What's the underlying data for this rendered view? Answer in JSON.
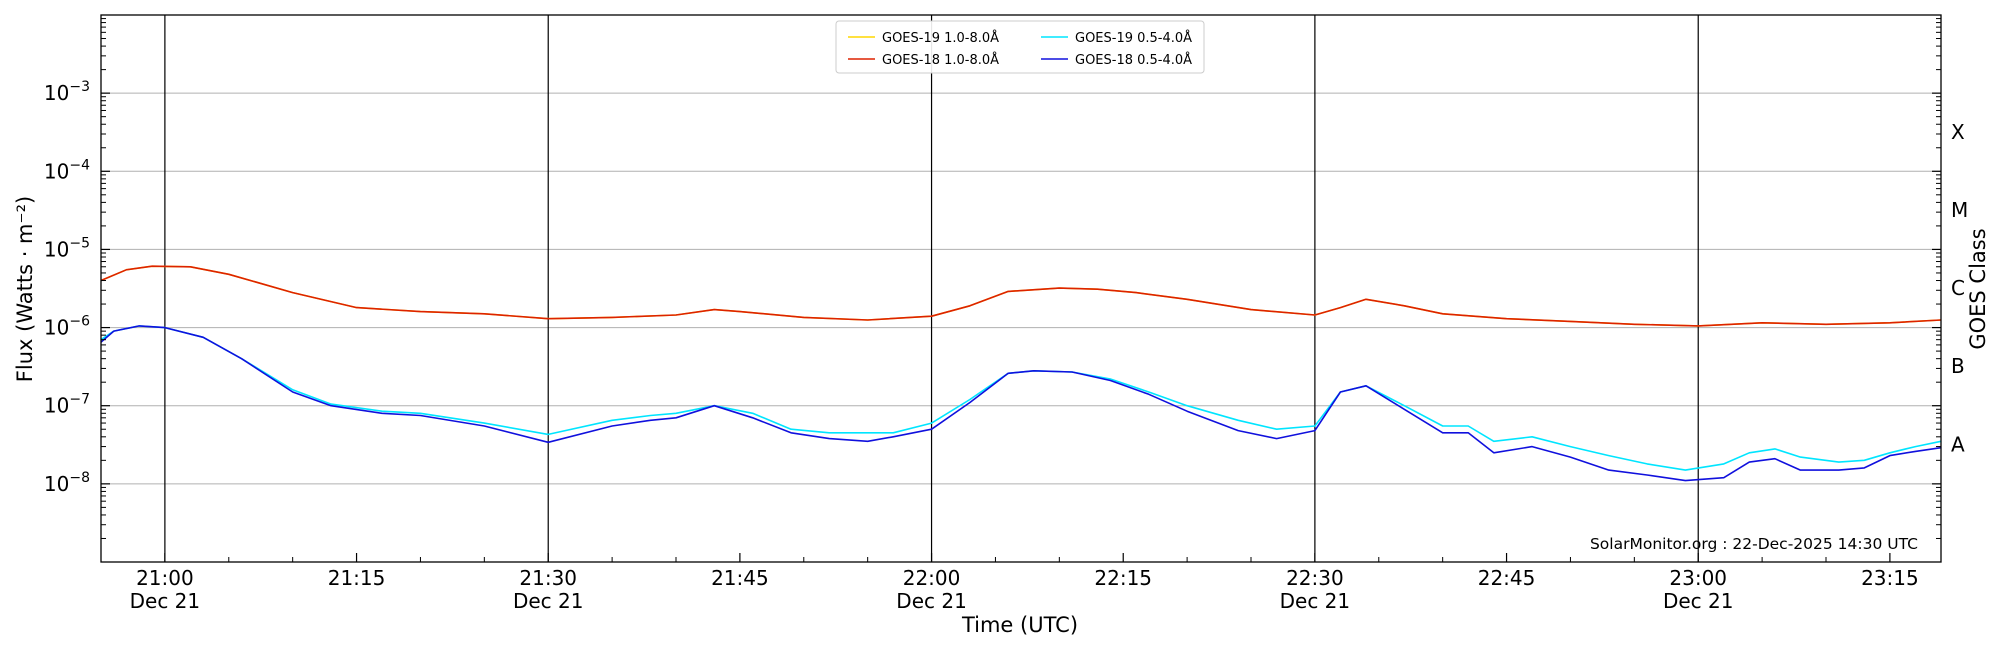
{
  "chart_data": {
    "type": "line",
    "title": "",
    "xlabel": "Time (UTC)",
    "ylabel": "Flux (Watts · m⁻²)",
    "y2label": "GOES Class",
    "y_scale": "log",
    "ylim": [
      1e-09,
      0.01
    ],
    "xlim": [
      "20:55",
      "23:19"
    ],
    "grid": "horizontal at decades",
    "legend_position": "top-center",
    "watermark": "SolarMonitor.org : 22-Dec-2025 14:30 UTC",
    "y_ticks": [
      {
        "value": 1e-08,
        "base": "10",
        "exp": "−8"
      },
      {
        "value": 1e-07,
        "base": "10",
        "exp": "−7"
      },
      {
        "value": 1e-06,
        "base": "10",
        "exp": "−6"
      },
      {
        "value": 1e-05,
        "base": "10",
        "exp": "−5"
      },
      {
        "value": 0.0001,
        "base": "10",
        "exp": "−4"
      },
      {
        "value": 0.001,
        "base": "10",
        "exp": "−3"
      }
    ],
    "class_labels": [
      {
        "label": "A",
        "value": 3.2e-08
      },
      {
        "label": "B",
        "value": 3.2e-07
      },
      {
        "label": "C",
        "value": 3.2e-06
      },
      {
        "label": "M",
        "value": 3.2e-05
      },
      {
        "label": "X",
        "value": 0.00032
      }
    ],
    "x_ticks": [
      {
        "time": "21:00",
        "date": "Dec 21"
      },
      {
        "time": "21:15",
        "date": ""
      },
      {
        "time": "21:30",
        "date": "Dec 21"
      },
      {
        "time": "21:45",
        "date": ""
      },
      {
        "time": "22:00",
        "date": "Dec 21"
      },
      {
        "time": "22:15",
        "date": ""
      },
      {
        "time": "22:30",
        "date": "Dec 21"
      },
      {
        "time": "22:45",
        "date": ""
      },
      {
        "time": "23:00",
        "date": "Dec 21"
      },
      {
        "time": "23:15",
        "date": ""
      }
    ],
    "vlines": [
      "21:00",
      "21:30",
      "22:00",
      "22:30",
      "23:00"
    ],
    "series": [
      {
        "name": "GOES-19 1.0-8.0Å",
        "color": "#ffd700",
        "x": [
          "20:55",
          "20:57",
          "20:59",
          "21:02",
          "21:05",
          "21:10",
          "21:15",
          "21:20",
          "21:25",
          "21:30",
          "21:35",
          "21:40",
          "21:43",
          "21:45",
          "21:50",
          "21:55",
          "22:00",
          "22:03",
          "22:06",
          "22:10",
          "22:13",
          "22:16",
          "22:20",
          "22:25",
          "22:30",
          "22:32",
          "22:34",
          "22:37",
          "22:40",
          "22:45",
          "22:50",
          "22:55",
          "23:00",
          "23:05",
          "23:10",
          "23:15",
          "23:19"
        ],
        "values": [
          4e-06,
          5.5e-06,
          6.1e-06,
          6e-06,
          4.8e-06,
          2.8e-06,
          1.8e-06,
          1.6e-06,
          1.5e-06,
          1.3e-06,
          1.35e-06,
          1.45e-06,
          1.7e-06,
          1.6e-06,
          1.35e-06,
          1.25e-06,
          1.4e-06,
          1.9e-06,
          2.9e-06,
          3.2e-06,
          3.1e-06,
          2.8e-06,
          2.3e-06,
          1.7e-06,
          1.45e-06,
          1.8e-06,
          2.3e-06,
          1.9e-06,
          1.5e-06,
          1.3e-06,
          1.2e-06,
          1.1e-06,
          1.05e-06,
          1.15e-06,
          1.1e-06,
          1.15e-06,
          1.25e-06
        ]
      },
      {
        "name": "GOES-18 1.0-8.0Å",
        "color": "#dd2200",
        "x": [
          "20:55",
          "20:57",
          "20:59",
          "21:02",
          "21:05",
          "21:10",
          "21:15",
          "21:20",
          "21:25",
          "21:30",
          "21:35",
          "21:40",
          "21:43",
          "21:45",
          "21:50",
          "21:55",
          "22:00",
          "22:03",
          "22:06",
          "22:10",
          "22:13",
          "22:16",
          "22:20",
          "22:25",
          "22:30",
          "22:32",
          "22:34",
          "22:37",
          "22:40",
          "22:45",
          "22:50",
          "22:55",
          "23:00",
          "23:05",
          "23:10",
          "23:15",
          "23:19"
        ],
        "values": [
          4e-06,
          5.5e-06,
          6.1e-06,
          6e-06,
          4.8e-06,
          2.8e-06,
          1.8e-06,
          1.6e-06,
          1.5e-06,
          1.3e-06,
          1.35e-06,
          1.45e-06,
          1.7e-06,
          1.6e-06,
          1.35e-06,
          1.25e-06,
          1.4e-06,
          1.9e-06,
          2.9e-06,
          3.2e-06,
          3.1e-06,
          2.8e-06,
          2.3e-06,
          1.7e-06,
          1.45e-06,
          1.8e-06,
          2.3e-06,
          1.9e-06,
          1.5e-06,
          1.3e-06,
          1.2e-06,
          1.1e-06,
          1.05e-06,
          1.15e-06,
          1.1e-06,
          1.15e-06,
          1.25e-06
        ]
      },
      {
        "name": "GOES-19 0.5-4.0Å",
        "color": "#00e5ff",
        "x": [
          "20:55",
          "20:56",
          "20:58",
          "21:00",
          "21:03",
          "21:06",
          "21:10",
          "21:13",
          "21:17",
          "21:20",
          "21:25",
          "21:30",
          "21:35",
          "21:38",
          "21:40",
          "21:43",
          "21:46",
          "21:49",
          "21:52",
          "21:55",
          "21:57",
          "22:00",
          "22:03",
          "22:06",
          "22:08",
          "22:11",
          "22:14",
          "22:17",
          "22:20",
          "22:24",
          "22:27",
          "22:30",
          "22:32",
          "22:34",
          "22:37",
          "22:40",
          "22:42",
          "22:44",
          "22:47",
          "22:50",
          "22:53",
          "22:56",
          "22:59",
          "23:02",
          "23:04",
          "23:06",
          "23:08",
          "23:11",
          "23:13",
          "23:15",
          "23:17",
          "23:19"
        ],
        "values": [
          7e-07,
          9e-07,
          1.05e-06,
          1e-06,
          7.5e-07,
          4e-07,
          1.6e-07,
          1.05e-07,
          8.5e-08,
          8e-08,
          6e-08,
          4.3e-08,
          6.5e-08,
          7.5e-08,
          8e-08,
          1e-07,
          8e-08,
          5e-08,
          4.5e-08,
          4.5e-08,
          4.5e-08,
          6e-08,
          1.2e-07,
          2.6e-07,
          2.8e-07,
          2.7e-07,
          2.2e-07,
          1.5e-07,
          1e-07,
          6.5e-08,
          5e-08,
          5.5e-08,
          1.5e-07,
          1.8e-07,
          1e-07,
          5.5e-08,
          5.5e-08,
          3.5e-08,
          4e-08,
          3e-08,
          2.3e-08,
          1.8e-08,
          1.5e-08,
          1.8e-08,
          2.5e-08,
          2.8e-08,
          2.2e-08,
          1.9e-08,
          2e-08,
          2.5e-08,
          3e-08,
          3.5e-08
        ]
      },
      {
        "name": "GOES-18 0.5-4.0Å",
        "color": "#1010dd",
        "x": [
          "20:55",
          "20:56",
          "20:58",
          "21:00",
          "21:03",
          "21:06",
          "21:10",
          "21:13",
          "21:17",
          "21:20",
          "21:25",
          "21:30",
          "21:35",
          "21:38",
          "21:40",
          "21:43",
          "21:46",
          "21:49",
          "21:52",
          "21:55",
          "21:57",
          "22:00",
          "22:03",
          "22:06",
          "22:08",
          "22:11",
          "22:14",
          "22:17",
          "22:20",
          "22:24",
          "22:27",
          "22:30",
          "22:32",
          "22:34",
          "22:37",
          "22:40",
          "22:42",
          "22:44",
          "22:47",
          "22:50",
          "22:53",
          "22:56",
          "22:59",
          "23:02",
          "23:04",
          "23:06",
          "23:08",
          "23:11",
          "23:13",
          "23:15",
          "23:17",
          "23:19"
        ],
        "values": [
          6.5e-07,
          9e-07,
          1.05e-06,
          1e-06,
          7.5e-07,
          4e-07,
          1.5e-07,
          1e-07,
          8e-08,
          7.5e-08,
          5.5e-08,
          3.4e-08,
          5.5e-08,
          6.5e-08,
          7e-08,
          1e-07,
          7e-08,
          4.5e-08,
          3.8e-08,
          3.5e-08,
          4e-08,
          5e-08,
          1.1e-07,
          2.6e-07,
          2.8e-07,
          2.7e-07,
          2.1e-07,
          1.4e-07,
          8.5e-08,
          4.8e-08,
          3.8e-08,
          4.8e-08,
          1.5e-07,
          1.8e-07,
          9e-08,
          4.5e-08,
          4.5e-08,
          2.5e-08,
          3e-08,
          2.2e-08,
          1.5e-08,
          1.3e-08,
          1.1e-08,
          1.2e-08,
          1.9e-08,
          2.1e-08,
          1.5e-08,
          1.5e-08,
          1.6e-08,
          2.3e-08,
          2.6e-08,
          2.9e-08
        ]
      }
    ]
  }
}
